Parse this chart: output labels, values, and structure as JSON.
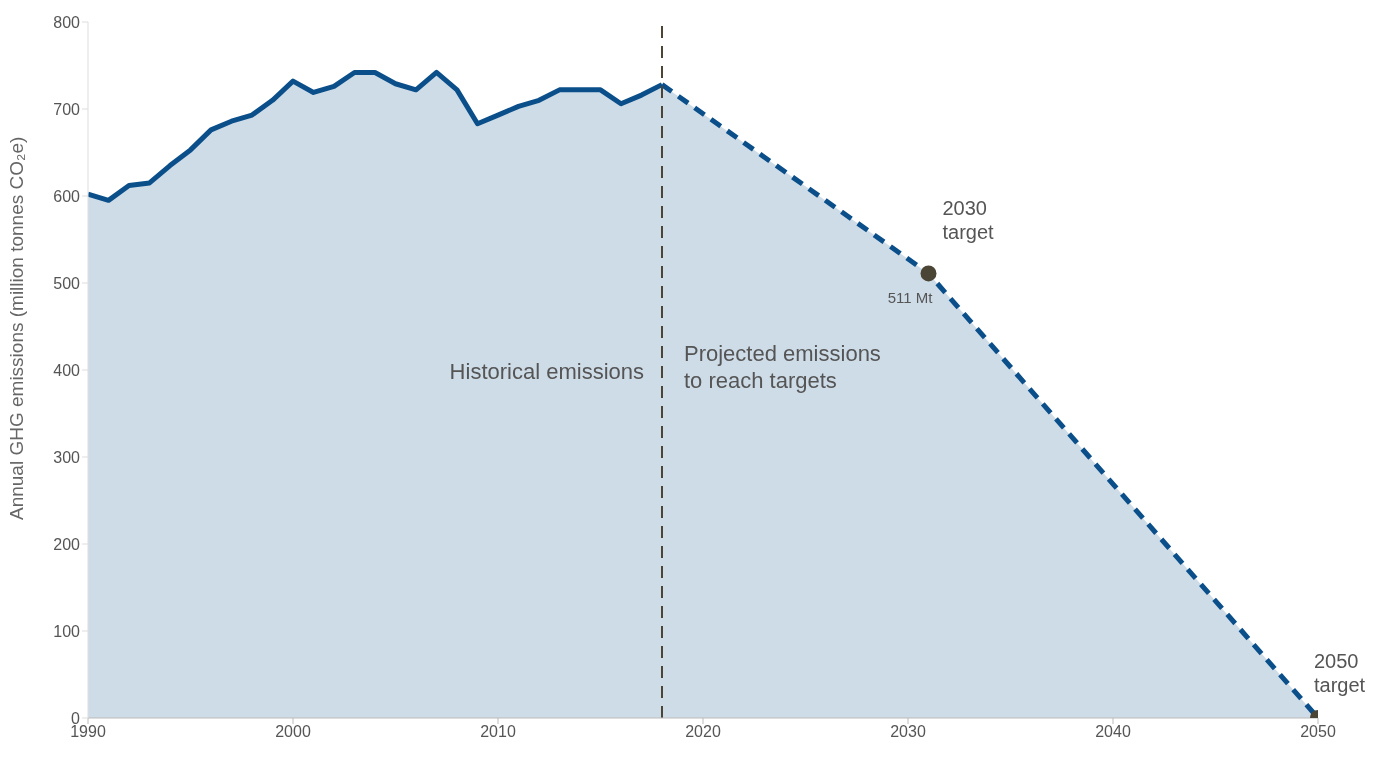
{
  "chart_data": {
    "type": "area",
    "ylabel": "Annual GHG emissions (million tonnes CO₂e)",
    "xlim": [
      1990,
      2050
    ],
    "xticks": [
      1990,
      2000,
      2010,
      2020,
      2030,
      2040,
      2050
    ],
    "ylim": [
      0,
      800
    ],
    "yticks": [
      0,
      100,
      200,
      300,
      400,
      500,
      600,
      700,
      800
    ],
    "marker": "none",
    "series": [
      {
        "color": "#0b4f8a",
        "line_style": "solid",
        "x": [
          1990,
          1991,
          1992,
          1993,
          1994,
          1995,
          1996,
          1997,
          1998,
          1999,
          2000,
          2001,
          2002,
          2003,
          2004,
          2005,
          2006,
          2007,
          2008,
          2009,
          2010,
          2011,
          2012,
          2013,
          2014,
          2015,
          2016,
          2017,
          2018
        ],
        "values": [
          602,
          595,
          612,
          615,
          635,
          653,
          676,
          686,
          693,
          710,
          732,
          719,
          726,
          742,
          742,
          729,
          722,
          742,
          722,
          683,
          693,
          703,
          710,
          722,
          722,
          722,
          706,
          716,
          728
        ]
      },
      {
        "color": "#0b4f8a",
        "line_style": "dashed",
        "x": [
          2018,
          2031,
          2050
        ],
        "values": [
          728,
          511,
          0
        ]
      },
      {
        "type": "scatter",
        "color": "#4a4535",
        "marker": "circle",
        "x": [
          2031,
          2050
        ],
        "values": [
          511,
          0
        ]
      }
    ],
    "ref_lines": [
      {
        "axis": "x",
        "value": 2018,
        "color": "#4a4535",
        "line_style": "dashed"
      }
    ],
    "annotations": [
      {
        "text": "Historical emissions",
        "x": 2018,
        "y": 390
      },
      {
        "text": "Projected emissions\nto reach targets",
        "x": 2018,
        "y": 410
      },
      {
        "text": "2030\ntarget",
        "x": 2031,
        "y": 511
      },
      {
        "text": "511 Mt",
        "x": 2031,
        "y": 511
      },
      {
        "text": "2050\ntarget",
        "x": 2050,
        "y": 0
      }
    ]
  }
}
